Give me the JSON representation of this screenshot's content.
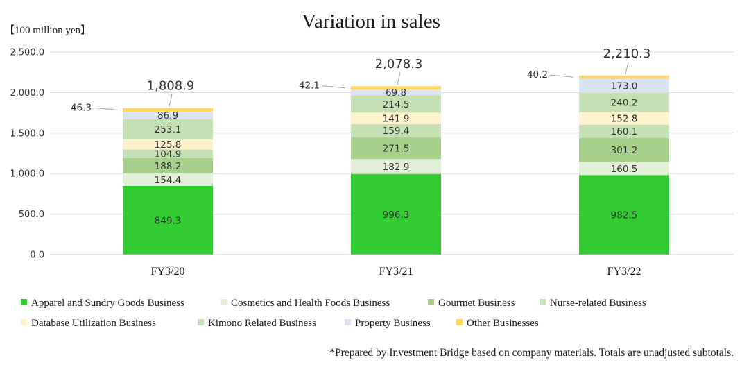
{
  "chart_data": {
    "type": "bar",
    "stacked": true,
    "title": "Variation in sales",
    "unit_label": "【100 million yen】",
    "categories": [
      "FY3/20",
      "FY3/21",
      "FY3/22"
    ],
    "ylim": [
      0,
      2500
    ],
    "yticks": [
      "0.0",
      "500.0",
      "1,000.0",
      "1,500.0",
      "2,000.0",
      "2,500.0"
    ],
    "ytick_values": [
      0,
      500,
      1000,
      1500,
      2000,
      2500
    ],
    "grid": true,
    "legend_position": "bottom",
    "series": [
      {
        "name": "Apparel and Sundry Goods Business",
        "color": "#33cc33",
        "values": [
          849.3,
          996.3,
          982.5
        ],
        "labels": [
          "849.3",
          "996.3",
          "982.5"
        ]
      },
      {
        "name": "Cosmetics and Health Foods Business",
        "color": "#e2f0d9",
        "values": [
          154.4,
          182.9,
          160.5
        ],
        "labels": [
          "154.4",
          "182.9",
          "160.5"
        ]
      },
      {
        "name": "Gourmet Business",
        "color": "#a9d18e",
        "values": [
          188.2,
          271.5,
          301.2
        ],
        "labels": [
          "188.2",
          "271.5",
          "301.2"
        ]
      },
      {
        "name": "Nurse-related Business",
        "color": "#c5e0b4",
        "values": [
          104.9,
          159.4,
          160.1
        ],
        "labels": [
          "104.9",
          "159.4",
          "160.1"
        ]
      },
      {
        "name": "Database Utilization Business",
        "color": "#fff2cc",
        "values": [
          125.8,
          141.9,
          152.8
        ],
        "labels": [
          "125.8",
          "141.9",
          "152.8"
        ]
      },
      {
        "name": "Kimono Related Business",
        "color": "#c5e0b4",
        "values": [
          253.1,
          214.5,
          240.2
        ],
        "labels": [
          "253.1",
          "214.5",
          "240.2"
        ]
      },
      {
        "name": "Property Business",
        "color": "#dae3f3",
        "values": [
          86.9,
          69.8,
          173.0
        ],
        "labels": [
          "86.9",
          "69.8",
          "173.0"
        ]
      },
      {
        "name": "Other Businesses",
        "color": "#ffd966",
        "values": [
          46.3,
          42.1,
          40.2
        ],
        "labels": [
          "46.3",
          "42.1",
          "40.2"
        ]
      }
    ],
    "totals": [
      "1,808.9",
      "2,078.3",
      "2,210.3"
    ],
    "footnote": "*Prepared by Investment Bridge based on company materials. Totals are unadjusted subtotals."
  }
}
